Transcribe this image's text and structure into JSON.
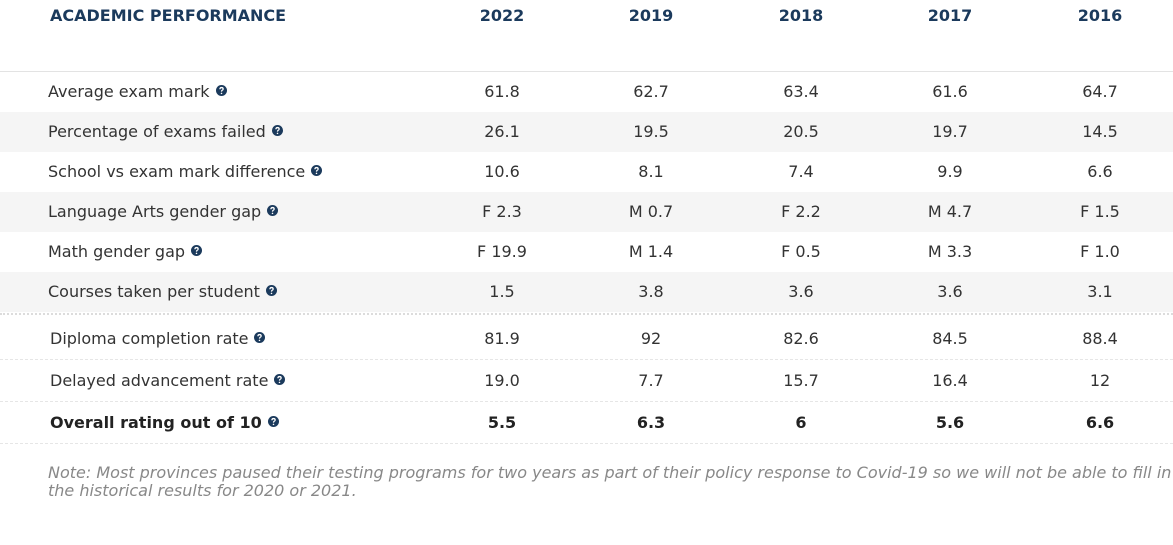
{
  "table": {
    "header": {
      "title": "ACADEMIC PERFORMANCE",
      "years": [
        "2022",
        "2019",
        "2018",
        "2017",
        "2016"
      ]
    },
    "rows": [
      {
        "label": "Average exam mark",
        "values": [
          "61.8",
          "62.7",
          "63.4",
          "61.6",
          "64.7"
        ]
      },
      {
        "label": "Percentage of exams failed",
        "values": [
          "26.1",
          "19.5",
          "20.5",
          "19.7",
          "14.5"
        ]
      },
      {
        "label": "School vs exam mark difference",
        "values": [
          "10.6",
          "8.1",
          "7.4",
          "9.9",
          "6.6"
        ]
      },
      {
        "label": "Language Arts gender gap",
        "values": [
          "F 2.3",
          "M 0.7",
          "F 2.2",
          "M 4.7",
          "F 1.5"
        ]
      },
      {
        "label": "Math gender gap",
        "values": [
          "F 19.9",
          "M 1.4",
          "F 0.5",
          "M 3.3",
          "F 1.0"
        ]
      },
      {
        "label": "Courses taken per student",
        "values": [
          "1.5",
          "3.8",
          "3.6",
          "3.6",
          "3.1"
        ]
      }
    ],
    "summary_rows": [
      {
        "label": "Diploma completion rate",
        "values": [
          "81.9",
          "92",
          "82.6",
          "84.5",
          "88.4"
        ]
      },
      {
        "label": "Delayed advancement rate",
        "values": [
          "19.0",
          "7.7",
          "15.7",
          "16.4",
          "12"
        ]
      },
      {
        "label": "Overall rating out of 10",
        "values": [
          "5.5",
          "6.3",
          "6",
          "5.6",
          "6.6"
        ]
      }
    ],
    "note": "Note: Most provinces paused their testing programs for two years as part of their policy response to Covid-19 so we will not be able to fill in the historical results for 2020 or 2021."
  }
}
